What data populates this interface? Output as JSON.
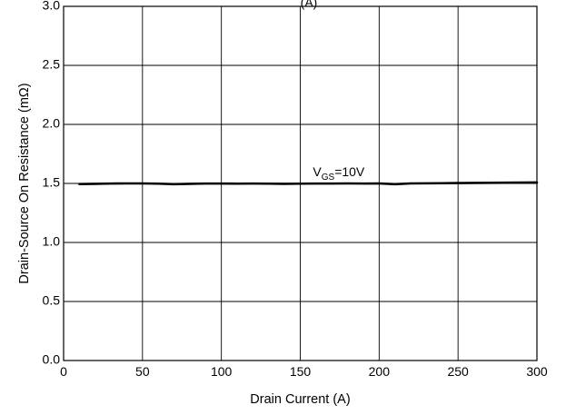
{
  "chart_data": {
    "type": "line",
    "title": "(A)",
    "xlabel": "Drain Current (A)",
    "ylabel": "Drain-Source On Resistance (mΩ)",
    "xlim": [
      0,
      300
    ],
    "ylim": [
      0,
      3.0
    ],
    "x_ticks": [
      0,
      50,
      100,
      150,
      200,
      250,
      300
    ],
    "y_ticks": [
      0.0,
      0.5,
      1.0,
      1.5,
      2.0,
      2.5,
      3.0
    ],
    "x_tick_labels": [
      "0",
      "50",
      "100",
      "150",
      "200",
      "250",
      "300"
    ],
    "y_tick_labels": [
      "0.0",
      "0.5",
      "1.0",
      "1.5",
      "2.0",
      "2.5",
      "3.0"
    ],
    "grid": true,
    "annotation": {
      "main": "V",
      "sub": "GS",
      "rest": "=10V",
      "x": 158,
      "y": 1.56
    },
    "series": [
      {
        "color": "#000000",
        "x": [
          10,
          20,
          30,
          40,
          50,
          60,
          70,
          80,
          90,
          100,
          110,
          120,
          130,
          140,
          150,
          160,
          170,
          180,
          190,
          200,
          210,
          220,
          230,
          240,
          250,
          260,
          270,
          280,
          290,
          300
        ],
        "y": [
          1.495,
          1.497,
          1.499,
          1.5,
          1.5,
          1.498,
          1.494,
          1.497,
          1.499,
          1.499,
          1.498,
          1.499,
          1.498,
          1.497,
          1.498,
          1.499,
          1.499,
          1.5,
          1.499,
          1.5,
          1.494,
          1.5,
          1.501,
          1.502,
          1.503,
          1.504,
          1.505,
          1.506,
          1.507,
          1.508
        ]
      }
    ]
  }
}
